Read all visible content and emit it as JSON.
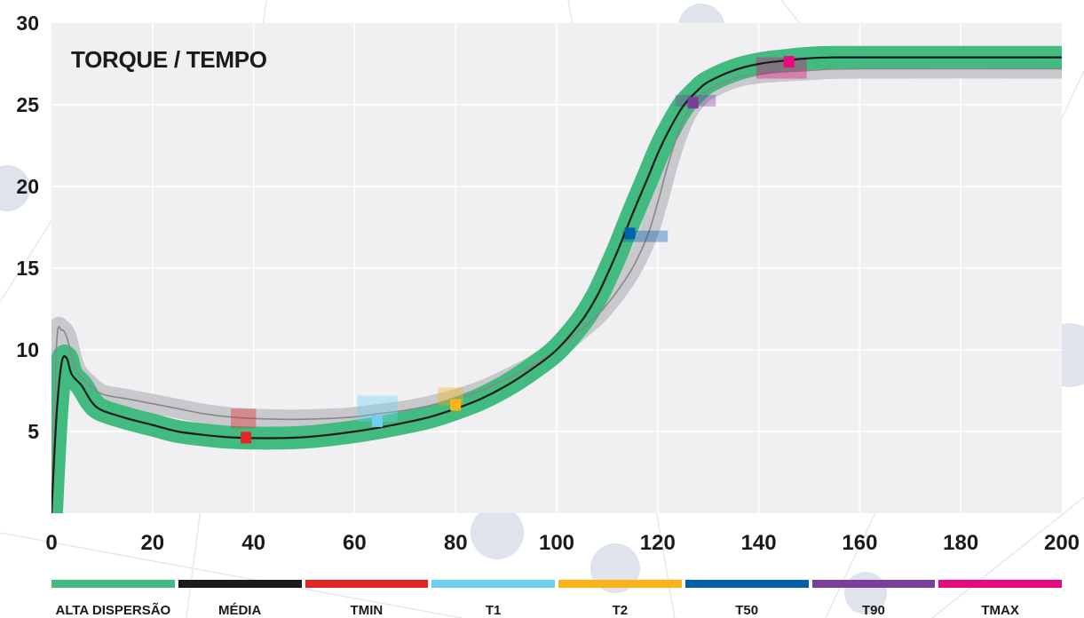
{
  "chart_data": {
    "type": "line",
    "title": "TORQUE / TEMPO",
    "xlim": [
      0,
      200
    ],
    "ylim": [
      0,
      30
    ],
    "x_ticks": [
      "0",
      "20",
      "40",
      "60",
      "80",
      "100",
      "120",
      "140",
      "160",
      "180",
      "200"
    ],
    "y_ticks": [
      "5",
      "10",
      "15",
      "20",
      "25",
      "30"
    ],
    "grid": true,
    "series": [
      {
        "name": "ALTA DISPERSÃO",
        "color": "#41bb7f",
        "band_width": 0.7,
        "points": [
          [
            0,
            0
          ],
          [
            1,
            6
          ],
          [
            2,
            9.2
          ],
          [
            3,
            9.5
          ],
          [
            4,
            8.5
          ],
          [
            6,
            7.8
          ],
          [
            8,
            6.8
          ],
          [
            10,
            6.3
          ],
          [
            15,
            5.8
          ],
          [
            20,
            5.4
          ],
          [
            25,
            5.0
          ],
          [
            30,
            4.8
          ],
          [
            35,
            4.65
          ],
          [
            40,
            4.6
          ],
          [
            45,
            4.6
          ],
          [
            50,
            4.65
          ],
          [
            55,
            4.8
          ],
          [
            60,
            5.0
          ],
          [
            65,
            5.25
          ],
          [
            70,
            5.55
          ],
          [
            75,
            5.9
          ],
          [
            80,
            6.4
          ],
          [
            85,
            7.0
          ],
          [
            90,
            7.8
          ],
          [
            95,
            8.8
          ],
          [
            100,
            10.0
          ],
          [
            105,
            11.8
          ],
          [
            108,
            13.3
          ],
          [
            110,
            14.6
          ],
          [
            112,
            16.0
          ],
          [
            115,
            18.3
          ],
          [
            118,
            20.5
          ],
          [
            120,
            22.0
          ],
          [
            122,
            23.3
          ],
          [
            125,
            24.9
          ],
          [
            128,
            25.9
          ],
          [
            130,
            26.4
          ],
          [
            135,
            27.1
          ],
          [
            140,
            27.5
          ],
          [
            145,
            27.7
          ],
          [
            150,
            27.85
          ],
          [
            155,
            27.9
          ],
          [
            160,
            27.9
          ],
          [
            200,
            27.9
          ]
        ]
      },
      {
        "name": "MÉDIA",
        "color": "#1b1b1b",
        "points": [
          [
            0,
            0
          ],
          [
            1,
            6
          ],
          [
            2,
            9.2
          ],
          [
            3,
            9.5
          ],
          [
            4,
            8.5
          ],
          [
            6,
            7.8
          ],
          [
            8,
            6.8
          ],
          [
            10,
            6.3
          ],
          [
            15,
            5.8
          ],
          [
            20,
            5.4
          ],
          [
            25,
            5.0
          ],
          [
            30,
            4.8
          ],
          [
            35,
            4.65
          ],
          [
            40,
            4.6
          ],
          [
            45,
            4.6
          ],
          [
            50,
            4.65
          ],
          [
            55,
            4.8
          ],
          [
            60,
            5.0
          ],
          [
            65,
            5.25
          ],
          [
            70,
            5.55
          ],
          [
            75,
            5.9
          ],
          [
            80,
            6.4
          ],
          [
            85,
            7.0
          ],
          [
            90,
            7.8
          ],
          [
            95,
            8.8
          ],
          [
            100,
            10.0
          ],
          [
            105,
            11.8
          ],
          [
            108,
            13.3
          ],
          [
            110,
            14.6
          ],
          [
            112,
            16.0
          ],
          [
            115,
            18.3
          ],
          [
            118,
            20.5
          ],
          [
            120,
            22.0
          ],
          [
            122,
            23.3
          ],
          [
            125,
            24.9
          ],
          [
            128,
            25.9
          ],
          [
            130,
            26.4
          ],
          [
            135,
            27.1
          ],
          [
            140,
            27.5
          ],
          [
            145,
            27.7
          ],
          [
            150,
            27.85
          ],
          [
            155,
            27.9
          ],
          [
            160,
            27.9
          ],
          [
            200,
            27.9
          ]
        ]
      },
      {
        "name": "",
        "color": "#888888",
        "band_color": "#c9c9cd",
        "band_width": 0.6,
        "points": [
          [
            0,
            0
          ],
          [
            1,
            10.3
          ],
          [
            2,
            11.2
          ],
          [
            3,
            10.8
          ],
          [
            4,
            9.6
          ],
          [
            5,
            8.7
          ],
          [
            7,
            8.0
          ],
          [
            10,
            7.3
          ],
          [
            15,
            7.0
          ],
          [
            20,
            6.7
          ],
          [
            25,
            6.4
          ],
          [
            30,
            6.1
          ],
          [
            35,
            5.9
          ],
          [
            40,
            5.8
          ],
          [
            45,
            5.75
          ],
          [
            50,
            5.75
          ],
          [
            55,
            5.8
          ],
          [
            60,
            5.9
          ],
          [
            65,
            6.1
          ],
          [
            70,
            6.3
          ],
          [
            75,
            6.6
          ],
          [
            80,
            7.0
          ],
          [
            85,
            7.5
          ],
          [
            90,
            8.2
          ],
          [
            95,
            9.0
          ],
          [
            100,
            10.0
          ],
          [
            105,
            11.3
          ],
          [
            108,
            12.1
          ],
          [
            110,
            12.8
          ],
          [
            112,
            13.6
          ],
          [
            115,
            15.0
          ],
          [
            118,
            17.0
          ],
          [
            120,
            19.0
          ],
          [
            122,
            21.3
          ],
          [
            124,
            23.2
          ],
          [
            126,
            24.6
          ],
          [
            128,
            25.4
          ],
          [
            130,
            25.9
          ],
          [
            135,
            26.6
          ],
          [
            140,
            26.9
          ],
          [
            150,
            27.1
          ],
          [
            160,
            27.2
          ],
          [
            200,
            27.2
          ]
        ]
      }
    ],
    "markers": [
      {
        "name": "TMIN",
        "color": "#e42526",
        "x": 38.5,
        "y": 4.6,
        "region": [
          [
            35.5,
            5.2
          ],
          [
            40.5,
            6.4
          ]
        ]
      },
      {
        "name": "T1",
        "color": "#6ecff1",
        "x": 64.5,
        "y": 5.6,
        "region": [
          [
            60.5,
            5.6
          ],
          [
            68.5,
            7.2
          ]
        ]
      },
      {
        "name": "T2",
        "color": "#fbb418",
        "x": 80.0,
        "y": 6.6,
        "region": [
          [
            76.5,
            6.6
          ],
          [
            81.5,
            7.7
          ]
        ]
      },
      {
        "name": "T50",
        "color": "#0062ab",
        "x": 114.5,
        "y": 17.1,
        "region": [
          [
            113.0,
            16.6
          ],
          [
            122.0,
            17.3
          ]
        ]
      },
      {
        "name": "T90",
        "color": "#7b3f9a",
        "x": 127.0,
        "y": 25.1,
        "region": [
          [
            123.5,
            24.9
          ],
          [
            131.5,
            25.6
          ]
        ]
      },
      {
        "name": "TMAX",
        "color": "#e6097f",
        "x": 146.0,
        "y": 27.6,
        "region": [
          [
            139.5,
            26.6
          ],
          [
            149.5,
            27.9
          ]
        ]
      }
    ],
    "legend_position": "bottom",
    "legend": [
      {
        "label": "ALTA DISPERSÃO",
        "color": "#41bb7f"
      },
      {
        "label": "MÉDIA",
        "color": "#1b1b1b"
      },
      {
        "label": "TMIN",
        "color": "#e42526"
      },
      {
        "label": "T1",
        "color": "#6ecff1"
      },
      {
        "label": "T2",
        "color": "#fbb418"
      },
      {
        "label": "T50",
        "color": "#0062ab"
      },
      {
        "label": "T90",
        "color": "#7b3f9a"
      },
      {
        "label": "TMAX",
        "color": "#e6097f"
      }
    ]
  }
}
